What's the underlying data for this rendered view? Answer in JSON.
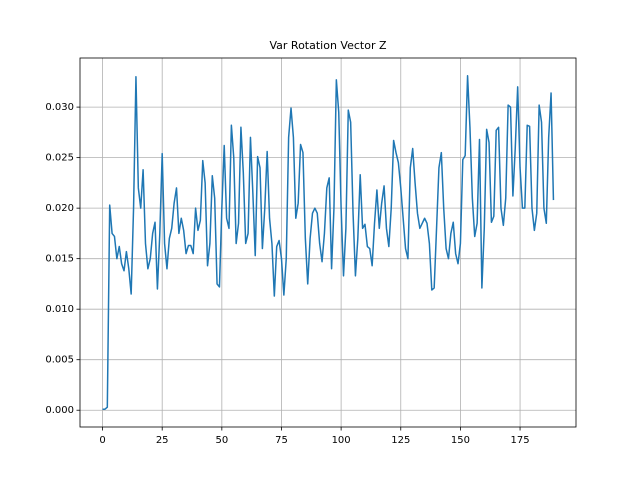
{
  "chart_data": {
    "type": "line",
    "title": "Var Rotation Vector Z",
    "x": [
      0,
      1,
      2,
      3,
      4,
      5,
      6,
      7,
      8,
      9,
      10,
      11,
      12,
      13,
      14,
      15,
      16,
      17,
      18,
      19,
      20,
      21,
      22,
      23,
      24,
      25,
      26,
      27,
      28,
      29,
      30,
      31,
      32,
      33,
      34,
      35,
      36,
      37,
      38,
      39,
      40,
      41,
      42,
      43,
      44,
      45,
      46,
      47,
      48,
      49,
      50,
      51,
      52,
      53,
      54,
      55,
      56,
      57,
      58,
      59,
      60,
      61,
      62,
      63,
      64,
      65,
      66,
      67,
      68,
      69,
      70,
      71,
      72,
      73,
      74,
      75,
      76,
      77,
      78,
      79,
      80,
      81,
      82,
      83,
      84,
      85,
      86,
      87,
      88,
      89,
      90,
      91,
      92,
      93,
      94,
      95,
      96,
      97,
      98,
      99,
      100,
      101,
      102,
      103,
      104,
      105,
      106,
      107,
      108,
      109,
      110,
      111,
      112,
      113,
      114,
      115,
      116,
      117,
      118,
      119,
      120,
      121,
      122,
      123,
      124,
      125,
      126,
      127,
      128,
      129,
      130,
      131,
      132,
      133,
      134,
      135,
      136,
      137,
      138,
      139,
      140,
      141,
      142,
      143,
      144,
      145,
      146,
      147,
      148,
      149,
      150,
      151,
      152,
      153,
      154,
      155,
      156,
      157,
      158,
      159,
      160,
      161,
      162,
      163,
      164,
      165,
      166,
      167,
      168,
      169,
      170,
      171,
      172,
      173,
      174,
      175,
      176,
      177,
      178,
      179,
      180,
      181,
      182,
      183,
      184,
      185,
      186,
      187,
      188,
      189
    ],
    "series": [
      {
        "color": "#1f77b4",
        "values": [
          0.0001,
          0.0001,
          0.0003,
          0.0203,
          0.0175,
          0.0172,
          0.015,
          0.0162,
          0.0145,
          0.0138,
          0.0157,
          0.014,
          0.0115,
          0.02,
          0.033,
          0.022,
          0.02,
          0.0238,
          0.0165,
          0.014,
          0.015,
          0.0175,
          0.0186,
          0.012,
          0.0175,
          0.0254,
          0.0165,
          0.014,
          0.017,
          0.018,
          0.0205,
          0.022,
          0.0175,
          0.019,
          0.0178,
          0.0155,
          0.0163,
          0.0163,
          0.0155,
          0.02,
          0.0178,
          0.0188,
          0.0247,
          0.0225,
          0.0143,
          0.0165,
          0.0232,
          0.021,
          0.0125,
          0.0122,
          0.02,
          0.0262,
          0.019,
          0.018,
          0.0282,
          0.025,
          0.0165,
          0.0185,
          0.028,
          0.0235,
          0.0165,
          0.0175,
          0.027,
          0.0215,
          0.0153,
          0.0251,
          0.024,
          0.016,
          0.02,
          0.0256,
          0.019,
          0.0165,
          0.0113,
          0.0162,
          0.0168,
          0.015,
          0.0114,
          0.015,
          0.027,
          0.0299,
          0.027,
          0.019,
          0.0205,
          0.0263,
          0.0255,
          0.017,
          0.0125,
          0.017,
          0.0195,
          0.02,
          0.0195,
          0.0165,
          0.0147,
          0.0175,
          0.022,
          0.023,
          0.014,
          0.02,
          0.0327,
          0.0295,
          0.02,
          0.0133,
          0.018,
          0.0297,
          0.0285,
          0.0195,
          0.0133,
          0.017,
          0.0233,
          0.018,
          0.0184,
          0.0162,
          0.016,
          0.0143,
          0.0185,
          0.0218,
          0.018,
          0.0205,
          0.0222,
          0.018,
          0.0162,
          0.02,
          0.0267,
          0.0255,
          0.0245,
          0.022,
          0.019,
          0.016,
          0.015,
          0.024,
          0.0259,
          0.0225,
          0.0195,
          0.018,
          0.0185,
          0.019,
          0.0185,
          0.0165,
          0.0119,
          0.0121,
          0.018,
          0.024,
          0.0255,
          0.02,
          0.016,
          0.015,
          0.0175,
          0.0186,
          0.0155,
          0.0145,
          0.0165,
          0.0248,
          0.0252,
          0.0331,
          0.028,
          0.021,
          0.0172,
          0.0185,
          0.0268,
          0.0121,
          0.018,
          0.0278,
          0.0265,
          0.0186,
          0.0192,
          0.0277,
          0.028,
          0.02,
          0.0183,
          0.021,
          0.0302,
          0.03,
          0.0212,
          0.026,
          0.032,
          0.024,
          0.02,
          0.02,
          0.0282,
          0.0281,
          0.02,
          0.0178,
          0.0195,
          0.0302,
          0.0285,
          0.02,
          0.0185,
          0.027,
          0.0314,
          0.0208
        ]
      }
    ],
    "xlim": [
      -9.45,
      198.45
    ],
    "xticks": [
      0,
      25,
      50,
      75,
      100,
      125,
      150,
      175
    ],
    "ylim": [
      -0.00166,
      0.03486
    ],
    "yticks": [
      {
        "value": 0,
        "label": "0.000"
      },
      {
        "value": 0.005,
        "label": "0.005"
      },
      {
        "value": 0.01,
        "label": "0.010"
      },
      {
        "value": 0.015,
        "label": "0.015"
      },
      {
        "value": 0.02,
        "label": "0.020"
      },
      {
        "value": 0.025,
        "label": "0.025"
      },
      {
        "value": 0.03,
        "label": "0.030"
      }
    ],
    "grid": true
  }
}
